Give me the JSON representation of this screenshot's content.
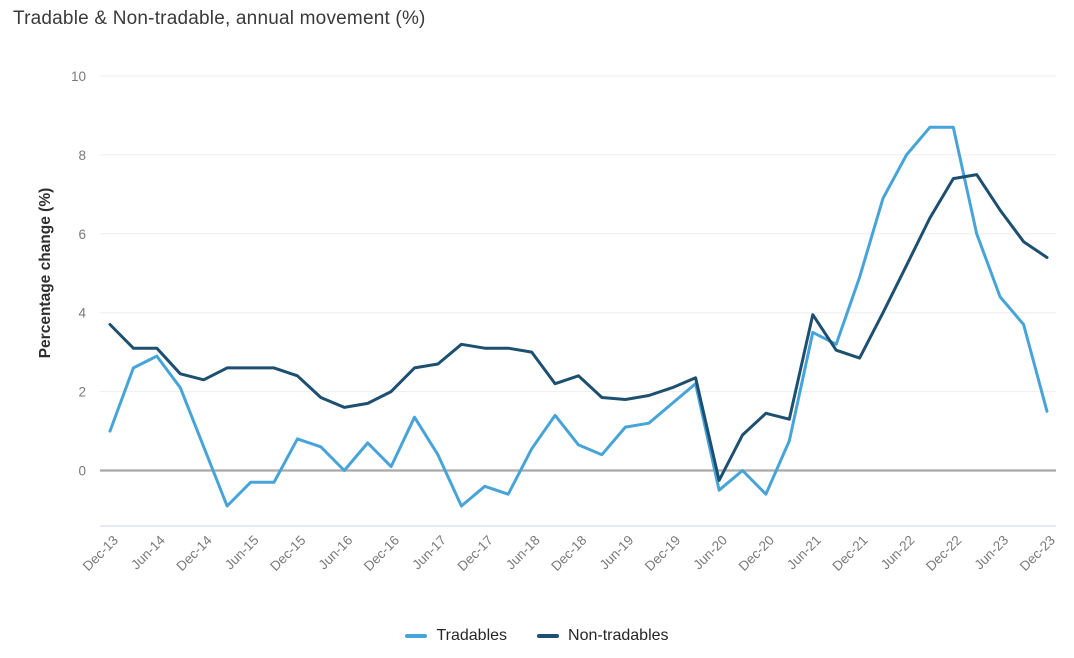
{
  "chart_data": {
    "type": "line",
    "title": "Tradable & Non-tradable, annual movement (%)",
    "xlabel": "",
    "ylabel": "Percentage change (%)",
    "ylim": [
      -1.4,
      10
    ],
    "yticks": [
      0,
      2,
      4,
      6,
      8,
      10
    ],
    "grid": true,
    "legend_position": "bottom",
    "grid_color": "#ededed",
    "zero_line_color": "#a9a9a9",
    "baseline_color": "#dbe7f2",
    "categories": [
      "Dec-13",
      "Mar-14",
      "Jun-14",
      "Sep-14",
      "Dec-14",
      "Mar-15",
      "Jun-15",
      "Sep-15",
      "Dec-15",
      "Mar-16",
      "Jun-16",
      "Sep-16",
      "Dec-16",
      "Mar-17",
      "Jun-17",
      "Sep-17",
      "Dec-17",
      "Mar-18",
      "Jun-18",
      "Sep-18",
      "Dec-18",
      "Mar-19",
      "Jun-19",
      "Sep-19",
      "Dec-19",
      "Mar-20",
      "Jun-20",
      "Sep-20",
      "Dec-20",
      "Mar-21",
      "Jun-21",
      "Sep-21",
      "Dec-21",
      "Mar-22",
      "Jun-22",
      "Sep-22",
      "Dec-22",
      "Mar-23",
      "Jun-23",
      "Sep-23",
      "Dec-23"
    ],
    "xtick_labels": [
      "Dec-13",
      "Jun-14",
      "Dec-14",
      "Jun-15",
      "Dec-15",
      "Jun-16",
      "Dec-16",
      "Jun-17",
      "Dec-17",
      "Jun-18",
      "Dec-18",
      "Jun-19",
      "Dec-19",
      "Jun-20",
      "Dec-20",
      "Jun-21",
      "Dec-21",
      "Jun-22",
      "Dec-22",
      "Jun-23",
      "Dec-23"
    ],
    "series": [
      {
        "name": "Tradables",
        "color": "#47a4d9",
        "values": [
          1.0,
          2.6,
          2.9,
          2.1,
          0.6,
          -0.9,
          -0.3,
          -0.3,
          0.8,
          0.6,
          0.0,
          0.7,
          0.1,
          1.35,
          0.4,
          -0.9,
          -0.4,
          -0.6,
          0.55,
          1.4,
          0.65,
          0.4,
          1.1,
          1.2,
          1.7,
          2.2,
          -0.5,
          0.0,
          -0.6,
          0.75,
          3.5,
          3.2,
          4.9,
          6.9,
          8.0,
          8.7,
          8.7,
          6.0,
          4.4,
          3.7,
          1.5
        ]
      },
      {
        "name": "Non-tradables",
        "color": "#1d4f70",
        "values": [
          3.7,
          3.1,
          3.1,
          2.45,
          2.3,
          2.6,
          2.6,
          2.6,
          2.4,
          1.85,
          1.6,
          1.7,
          2.0,
          2.6,
          2.7,
          3.2,
          3.1,
          3.1,
          3.0,
          2.2,
          2.4,
          1.85,
          1.8,
          1.9,
          2.1,
          2.35,
          -0.25,
          0.9,
          1.45,
          1.3,
          3.95,
          3.05,
          2.85,
          4.0,
          5.2,
          6.4,
          7.4,
          7.5,
          6.6,
          5.8,
          5.4
        ]
      }
    ]
  }
}
